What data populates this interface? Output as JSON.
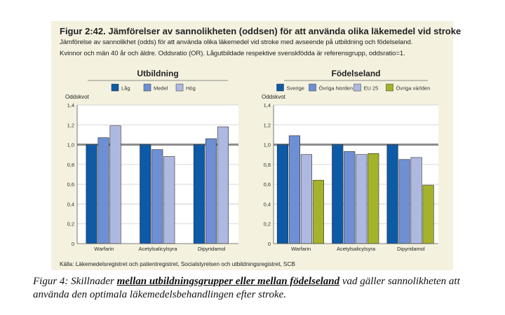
{
  "figure": {
    "title": "Figur 2:42. Jämförelser av sannolikheten (oddsen) för att använda olika läkemedel vid stroke",
    "description_line1": "Jämförelse av sannolikhet (odds) för att använda olika läkemedel vid stroke med avseende på utbildning och födelseland.",
    "description_line2": "Kvinnor och män 40 år och äldre. Oddsratio (OR). Lågutbildade respektive svenskfödda är referensgrupp, oddsratio=1.",
    "source": "Källa: Läkemedelsregistret och patientregistret, Socialstyrelsen och utbildningsregistret, SCB"
  },
  "caption": {
    "prefix": "Figur 4: Skillnader ",
    "emphasis": "mellan utbildningsgrupper eller mellan födelseland",
    "suffix": " vad gäller sannolikheten att använda den optimala läkemedelsbehandlingen efter stroke."
  },
  "colors": {
    "panel_bg": "#f4f2df",
    "plot_bg": "#ffffff",
    "reference_line": "#8a8a8a",
    "axis": "#555555"
  },
  "chart_data": [
    {
      "type": "bar",
      "title": "Utbildning",
      "ylabel": "Oddskvot",
      "ylim": [
        0,
        1.4
      ],
      "yticks": [
        0,
        0.2,
        0.4,
        0.6,
        0.8,
        1.0,
        1.2,
        1.4
      ],
      "ytick_labels": [
        "0",
        "0,2",
        "0,4",
        "0,6",
        "0,8",
        "1,0",
        "1,2",
        "1,4"
      ],
      "reference_value": 1.0,
      "categories": [
        "Warfarin",
        "Acetylsalicylsyra",
        "Dipyridamol"
      ],
      "legend_position": "top",
      "series": [
        {
          "name": "Låg",
          "color": "#0d5aa7",
          "values": [
            1.0,
            1.0,
            1.0
          ]
        },
        {
          "name": "Medel",
          "color": "#6e8fd3",
          "values": [
            1.07,
            0.95,
            1.06
          ]
        },
        {
          "name": "Hög",
          "color": "#aeb9e2",
          "values": [
            1.19,
            0.88,
            1.18
          ]
        }
      ]
    },
    {
      "type": "bar",
      "title": "Födelseland",
      "ylabel": "Oddskvot",
      "ylim": [
        0,
        1.4
      ],
      "yticks": [
        0,
        0.2,
        0.4,
        0.6,
        0.8,
        1.0,
        1.2,
        1.4
      ],
      "ytick_labels": [
        "0",
        "0,2",
        "0,4",
        "0,6",
        "0,8",
        "1,0",
        "1,2",
        "1,4"
      ],
      "reference_value": 1.0,
      "categories": [
        "Warfarin",
        "Acetylsalicylsyra",
        "Dipyridamol"
      ],
      "legend_position": "top",
      "series": [
        {
          "name": "Sverige",
          "color": "#0d5aa7",
          "values": [
            1.0,
            1.0,
            1.0
          ]
        },
        {
          "name": "Övriga Norden",
          "color": "#6e8fd3",
          "values": [
            1.09,
            0.93,
            0.85
          ]
        },
        {
          "name": "EU 25",
          "color": "#aeb9e2",
          "values": [
            0.9,
            0.9,
            0.87
          ]
        },
        {
          "name": "Övriga världen",
          "color": "#a4b32b",
          "values": [
            0.64,
            0.91,
            0.59
          ]
        }
      ]
    }
  ]
}
